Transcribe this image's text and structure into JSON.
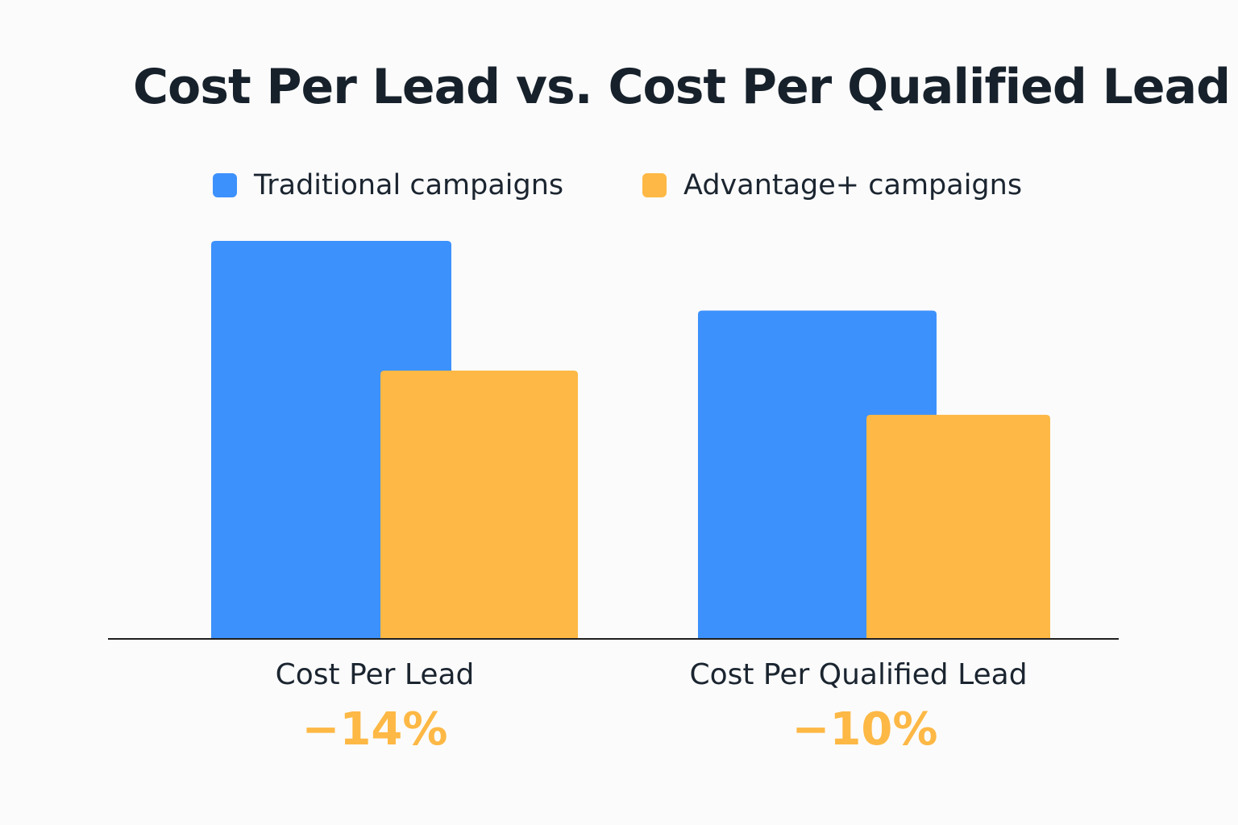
{
  "chart_data": {
    "type": "bar",
    "title": "Cost Per Lead vs. Cost Per Qualified Lead",
    "categories": [
      "Cost Per Lead",
      "Cost Per Qualified Lead"
    ],
    "series": [
      {
        "name": "Traditional campaigns",
        "color": "#3d91fc",
        "values": [
          100,
          82.5
        ]
      },
      {
        "name": "Advantage+ campaigns",
        "color": "#fdb845",
        "values": [
          67.4,
          56.3
        ]
      }
    ],
    "ylim": [
      0,
      100
    ],
    "y_axis_shown": false,
    "grid": false,
    "legend_position": "top",
    "annotations": [
      {
        "category": "Cost Per Lead",
        "text": "−14%"
      },
      {
        "category": "Cost Per Qualified Lead",
        "text": "−10%"
      }
    ],
    "annotation_color": "#fdb845",
    "axis_line_color": "#1f1f1f"
  }
}
